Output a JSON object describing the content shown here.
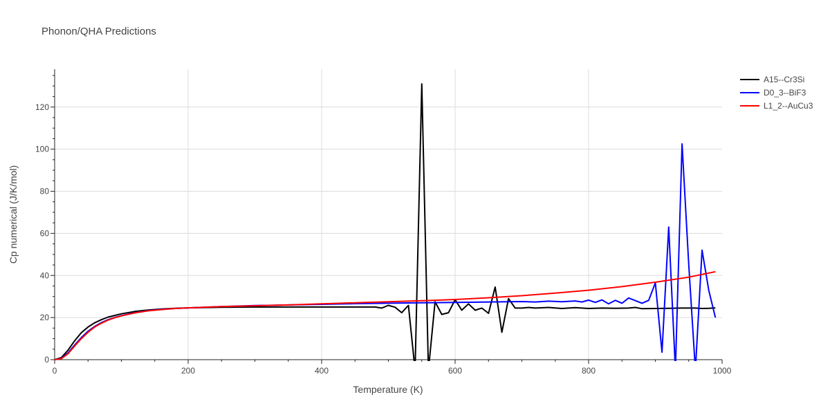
{
  "chart_data": {
    "type": "line",
    "title": "Phonon/QHA Predictions",
    "xlabel": "Temperature (K)",
    "ylabel": "Cp numerical (J/K/mol)",
    "xlim": [
      0,
      1000
    ],
    "ylim": [
      0,
      138
    ],
    "xticks": [
      0,
      200,
      400,
      600,
      800,
      1000
    ],
    "yticks": [
      0,
      20,
      40,
      60,
      80,
      100,
      120
    ],
    "grid": true,
    "legend_position": "top-right",
    "series": [
      {
        "name": "A15--Cr3Si",
        "color": "#000000",
        "x": [
          0,
          10,
          20,
          30,
          40,
          50,
          60,
          70,
          80,
          90,
          100,
          120,
          140,
          160,
          180,
          200,
          250,
          300,
          350,
          400,
          450,
          480,
          490,
          500,
          510,
          520,
          530,
          540,
          550,
          560,
          570,
          580,
          590,
          600,
          610,
          620,
          630,
          640,
          650,
          660,
          670,
          680,
          690,
          700,
          710,
          720,
          740,
          760,
          780,
          800,
          820,
          840,
          860,
          870,
          880,
          900,
          920,
          940,
          960,
          970,
          980,
          990
        ],
        "y": [
          0,
          1,
          4.5,
          9,
          12.8,
          15.5,
          17.5,
          19,
          20.2,
          21,
          21.8,
          22.9,
          23.6,
          24.1,
          24.4,
          24.6,
          24.9,
          25.0,
          25.0,
          25.0,
          25.0,
          25.0,
          24.5,
          25.8,
          24.9,
          22.3,
          25.8,
          -5,
          131,
          -5,
          27.5,
          21.5,
          22.3,
          28.5,
          23.5,
          26.5,
          23.5,
          24.5,
          22,
          34.5,
          13,
          29,
          24.5,
          24.5,
          24.8,
          24.5,
          24.8,
          24.3,
          24.7,
          24.3,
          24.5,
          24.4,
          24.5,
          24.8,
          24.2,
          24.3,
          24.4,
          24.5,
          24.5,
          24.3,
          24.4,
          24.6
        ]
      },
      {
        "name": "D0_3--BiF3",
        "color": "#0000ff",
        "x": [
          0,
          10,
          20,
          30,
          40,
          50,
          60,
          70,
          80,
          90,
          100,
          120,
          140,
          160,
          180,
          200,
          250,
          300,
          350,
          400,
          450,
          500,
          550,
          600,
          650,
          700,
          720,
          740,
          760,
          780,
          790,
          800,
          810,
          820,
          830,
          840,
          850,
          860,
          880,
          890,
          900,
          910,
          920,
          930,
          940,
          950,
          960,
          970,
          980,
          990
        ],
        "y": [
          0,
          0.6,
          3.2,
          7,
          10.5,
          13.5,
          15.8,
          17.6,
          19,
          20,
          20.9,
          22.3,
          23.3,
          23.9,
          24.3,
          24.6,
          25.2,
          25.7,
          26.0,
          26.3,
          26.6,
          26.8,
          27.0,
          27.2,
          27.4,
          27.6,
          27.4,
          27.8,
          27.5,
          27.9,
          27.4,
          28.3,
          27.2,
          28.4,
          26.5,
          28.2,
          26.8,
          29.3,
          26.8,
          28.2,
          36.5,
          3.5,
          63,
          -5,
          102.5,
          45,
          -5,
          52,
          33,
          20
        ]
      },
      {
        "name": "L1_2--AuCu3",
        "color": "#ff0000",
        "x": [
          0,
          10,
          20,
          30,
          40,
          50,
          60,
          70,
          80,
          90,
          100,
          120,
          140,
          160,
          180,
          200,
          250,
          300,
          350,
          400,
          450,
          500,
          550,
          600,
          650,
          700,
          750,
          800,
          850,
          900,
          950,
          990
        ],
        "y": [
          0,
          0.5,
          2.8,
          6.5,
          10,
          13,
          15.5,
          17.3,
          18.8,
          19.9,
          20.8,
          22.2,
          23.2,
          23.8,
          24.3,
          24.6,
          25.2,
          25.6,
          26.0,
          26.5,
          27.0,
          27.5,
          28.0,
          28.6,
          29.4,
          30.4,
          31.6,
          33.0,
          34.7,
          36.8,
          39.2,
          41.8
        ]
      }
    ]
  }
}
